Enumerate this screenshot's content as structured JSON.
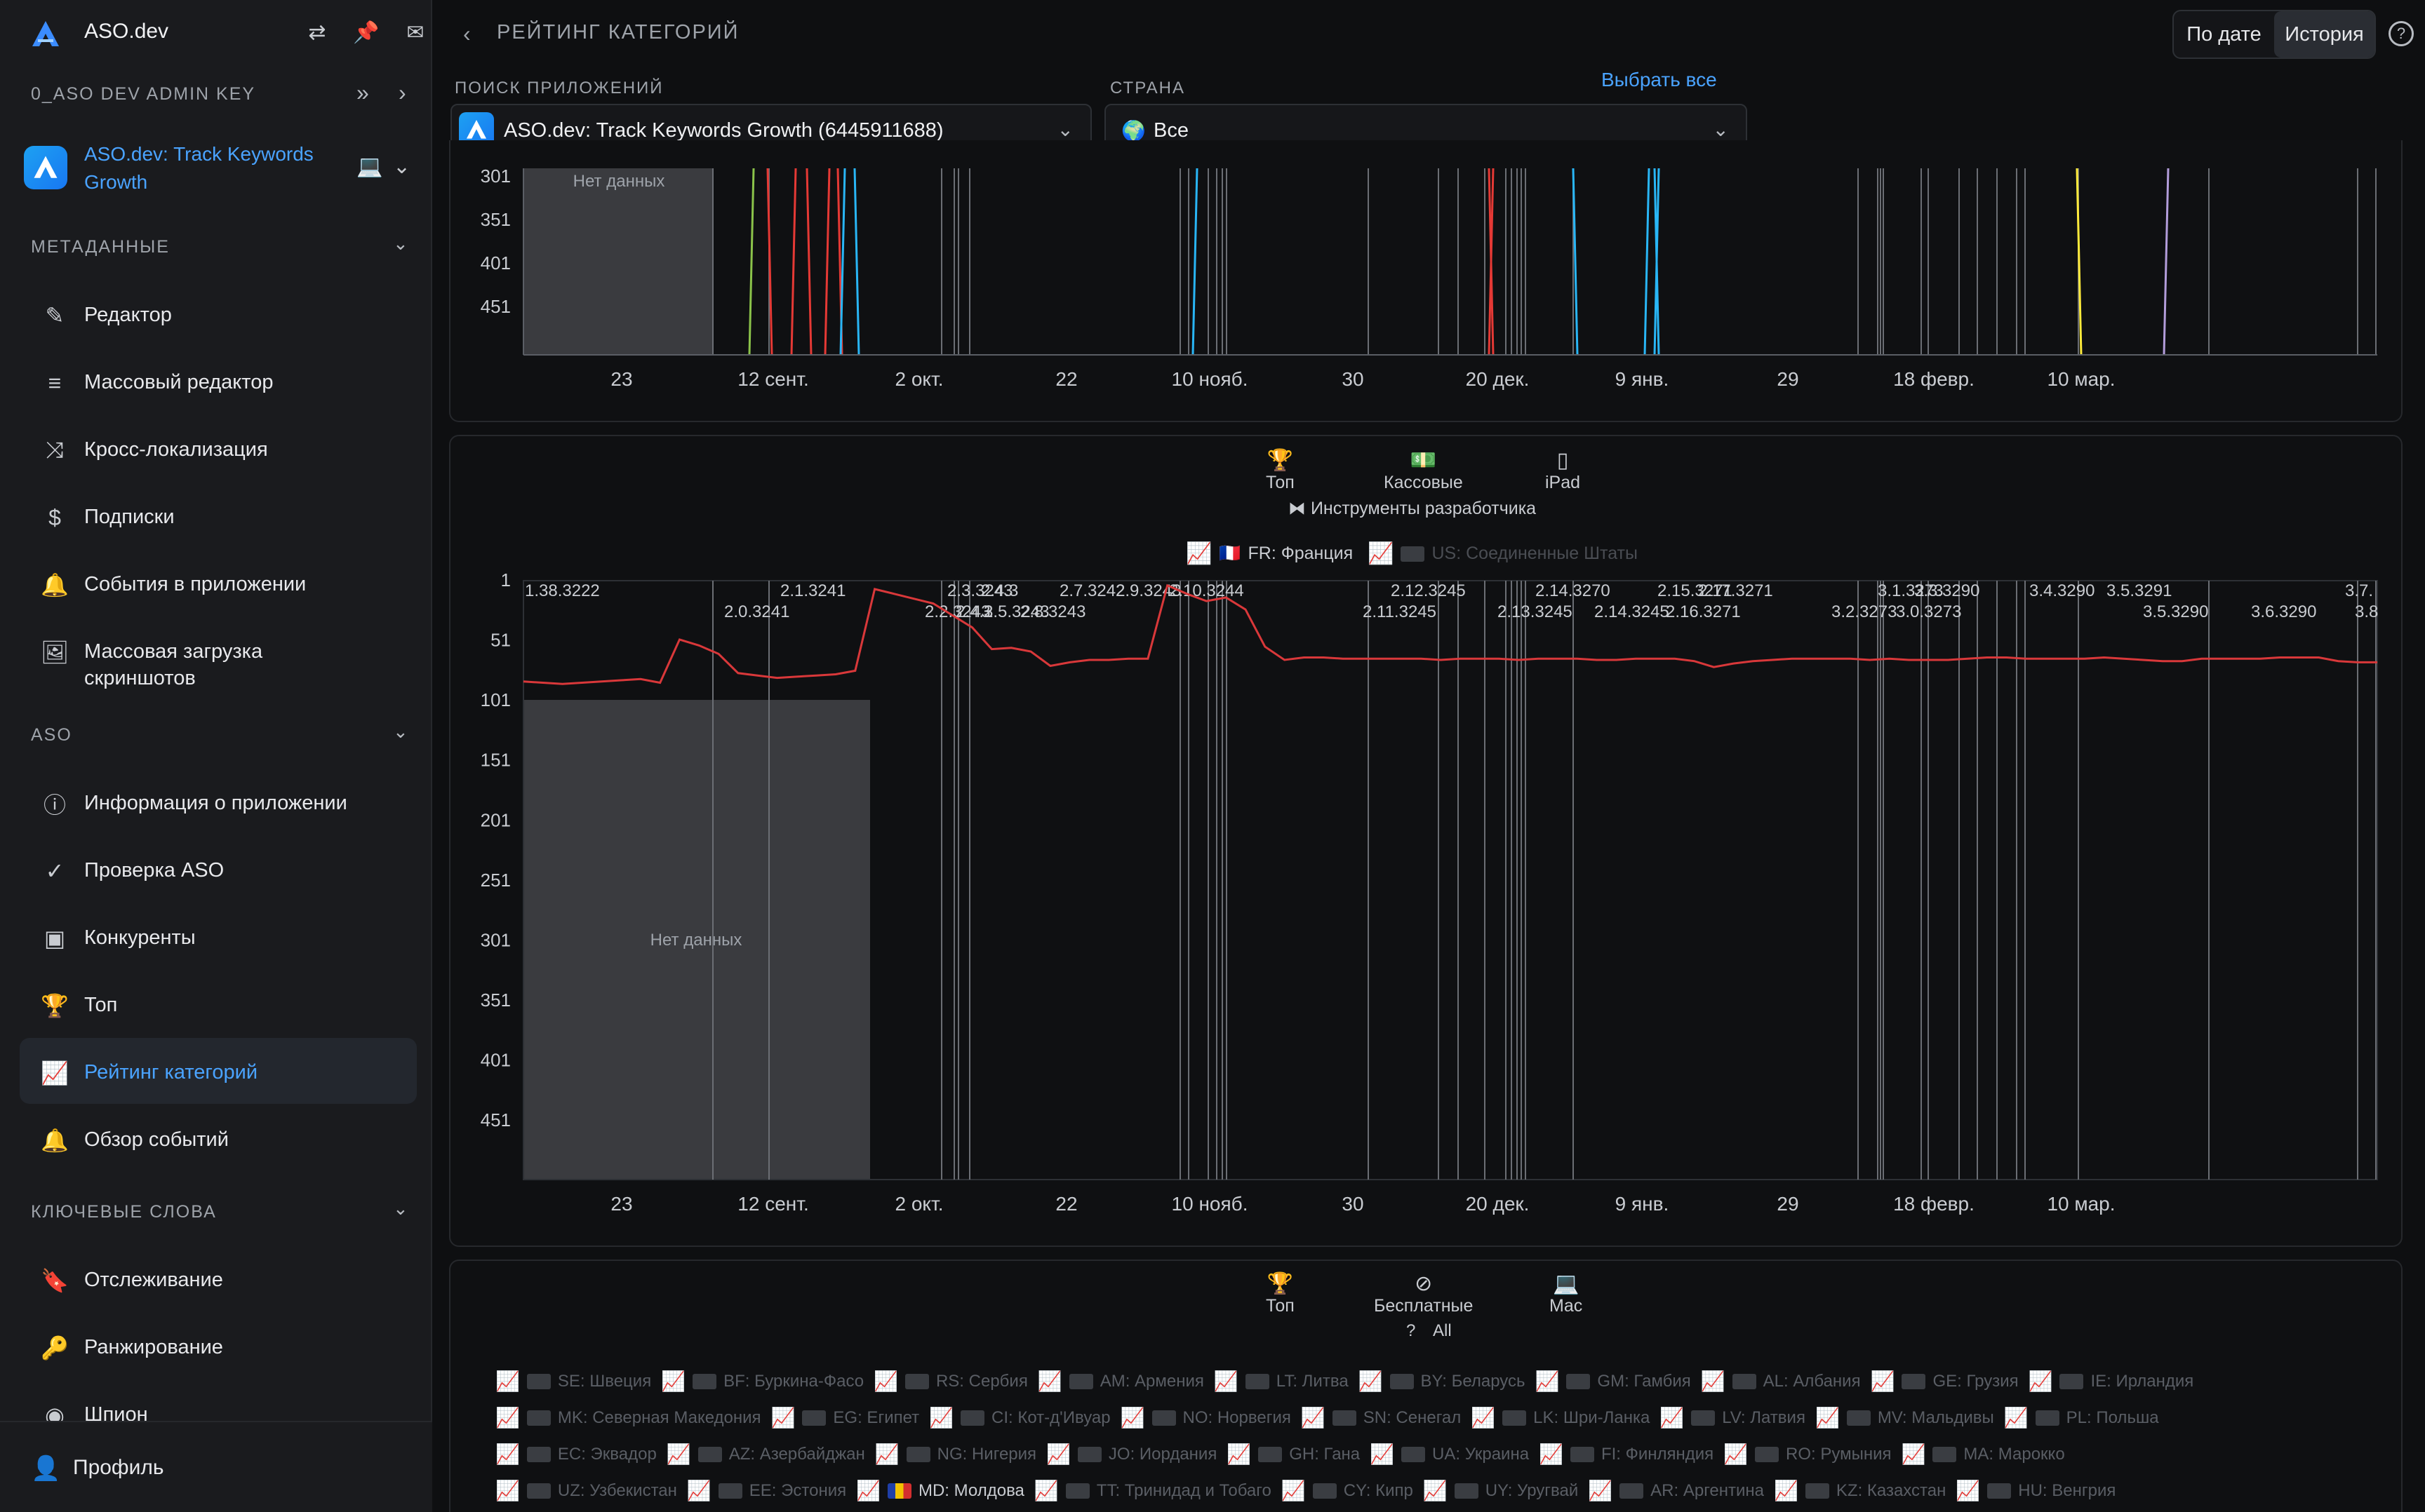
{
  "sidebar": {
    "app_name": "ASO.dev",
    "api_key": "0_ASO DEV ADMIN KEY",
    "current_app": "ASO.dev: Track Keywords Growth",
    "sections": {
      "metadata": "МЕТАДАННЫЕ",
      "aso": "ASO",
      "keywords": "КЛЮЧЕВЫЕ СЛОВА"
    },
    "items": [
      {
        "label": "Редактор",
        "icon": "pencil-icon"
      },
      {
        "label": "Массовый редактор",
        "icon": "bulk-edit-icon"
      },
      {
        "label": "Кросс-локализация",
        "icon": "shuffle-icon"
      },
      {
        "label": "Подписки",
        "icon": "subscription-icon"
      },
      {
        "label": "События в приложении",
        "icon": "bell-icon"
      },
      {
        "label": "Массовая загрузка скриншотов",
        "icon": "image-upload-icon"
      },
      {
        "label": "Информация о приложении",
        "icon": "info-icon"
      },
      {
        "label": "Проверка ASO",
        "icon": "check-circle-icon"
      },
      {
        "label": "Конкуренты",
        "icon": "competitors-icon"
      },
      {
        "label": "Топ",
        "icon": "trophy-icon"
      },
      {
        "label": "Рейтинг категорий",
        "icon": "chart-icon"
      },
      {
        "label": "Обзор событий",
        "icon": "bell-icon"
      },
      {
        "label": "Отслеживание",
        "icon": "bookmark-icon"
      },
      {
        "label": "Ранжирование",
        "icon": "key-icon"
      },
      {
        "label": "Шпион",
        "icon": "spy-icon"
      }
    ],
    "profile": "Профиль"
  },
  "header": {
    "title": "РЕЙТИНГ КАТЕГОРИЙ",
    "seg_date": "По дате",
    "seg_history": "История",
    "help": "?"
  },
  "filters": {
    "app_label": "ПОИСК ПРИЛОЖЕНИЙ",
    "app_value": "ASO.dev: Track Keywords Growth (6445911688)",
    "country_label": "СТРАНА",
    "country_value": "Все",
    "select_all": "Выбрать все"
  },
  "chart_top": {
    "no_data": "Нет данных",
    "y_ticks": [
      "301",
      "351",
      "401",
      "451"
    ],
    "x_ticks": [
      "23",
      "12 сент.",
      "2 окт.",
      "22",
      "10 нояб.",
      "30",
      "20 дек.",
      "9 янв.",
      "29",
      "18 февр.",
      "10 мар."
    ]
  },
  "chart_main": {
    "filters": [
      {
        "label": "Топ",
        "icon": "trophy-icon"
      },
      {
        "label": "Кассовые",
        "icon": "cash-icon"
      },
      {
        "label": "iPad",
        "icon": "tablet-icon"
      }
    ],
    "category": "Инструменты разработчика",
    "legend": [
      {
        "label": "FR: Франция",
        "active": true
      },
      {
        "label": "US: Соединенные Штаты",
        "active": false
      }
    ],
    "no_data": "Нет данных",
    "y_ticks": [
      "1",
      "51",
      "101",
      "151",
      "201",
      "251",
      "301",
      "351",
      "401",
      "451"
    ],
    "x_ticks": [
      "23",
      "12 сент.",
      "2 окт.",
      "22",
      "10 нояб.",
      "30",
      "20 дек.",
      "9 янв.",
      "29",
      "18 февр.",
      "10 мар."
    ],
    "version_labels_top": [
      "1.38.3222",
      "2.1.3241",
      "2.3.3243",
      "2.4.3",
      "2.7.3242",
      "2.9.3243",
      "2.10.3244",
      "2.12.3245",
      "2.14.3270",
      "2.15.3271",
      "2.17.3271",
      "3.1.3273",
      "3.3.3290",
      "3.4.3290",
      "3.5.3291",
      "3.7."
    ],
    "version_labels_bottom": [
      "2.0.3241",
      "2.2.3243",
      "2.4.3",
      "2.5.3243",
      "2.8.3243",
      "2.11.3245",
      "2.13.3245",
      "2.14.3245",
      "2.16.3271",
      "3.2.3273",
      "3.0.3273",
      "3.5.3290",
      "3.6.3290",
      "3.8"
    ]
  },
  "chart_data": {
    "type": "line",
    "series": [
      {
        "name": "FR: Франция",
        "color": "#d9383a"
      }
    ],
    "x_ticks": [
      "23",
      "12 сент.",
      "2 окт.",
      "22",
      "10 нояб.",
      "30",
      "20 дек.",
      "9 янв.",
      "29",
      "18 февр.",
      "10 мар."
    ],
    "y_ticks": [
      1,
      51,
      101,
      151,
      201,
      251,
      301,
      351,
      401,
      451
    ],
    "ylim": [
      1,
      500
    ],
    "y_inverted": true,
    "values": [
      85,
      86,
      87,
      86,
      85,
      84,
      83,
      86,
      50,
      55,
      62,
      78,
      80,
      82,
      81,
      80,
      79,
      76,
      8,
      12,
      16,
      20,
      30,
      40,
      58,
      57,
      60,
      72,
      69,
      67,
      67,
      66,
      66,
      5,
      12,
      18,
      15,
      25,
      56,
      67,
      65,
      65,
      66,
      66,
      66,
      66,
      66,
      67,
      66,
      66,
      66,
      67,
      66,
      66,
      66,
      67,
      67,
      66,
      66,
      66,
      68,
      73,
      70,
      68,
      67,
      66,
      66,
      66,
      66,
      67,
      66,
      67,
      67,
      67,
      66,
      65,
      65,
      66,
      66,
      66,
      66,
      65,
      66,
      67,
      68,
      68,
      66,
      66,
      66,
      66,
      65,
      65,
      65,
      68,
      69,
      69
    ]
  },
  "chart_bottom": {
    "filters": [
      {
        "label": "Топ",
        "icon": "trophy-icon"
      },
      {
        "label": "Бесплатные",
        "icon": "free-icon"
      },
      {
        "label": "Mac",
        "icon": "laptop-icon"
      }
    ],
    "category": "All",
    "legend_rows": [
      [
        "SE: Швеция",
        "BF: Буркина-Фасо",
        "RS: Сербия",
        "AM: Армения",
        "LT: Литва",
        "BY: Беларусь",
        "GM: Гамбия",
        "AL: Албания",
        "GE: Грузия",
        "IE: Ирландия"
      ],
      [
        "MK: Северная Македония",
        "EG: Египет",
        "CI: Кот-д'Ивуар",
        "NO: Норвегия",
        "SN: Сенегал",
        "LK: Шри-Ланка",
        "LV: Латвия",
        "MV: Мальдивы",
        "PL: Польша"
      ],
      [
        "EC: Эквадор",
        "AZ: Азербайджан",
        "NG: Нигерия",
        "JO: Иордания",
        "GH: Гана",
        "UA: Украина",
        "FI: Финляндия",
        "RO: Румыния",
        "MA: Марокко"
      ],
      [
        "UZ: Узбекистан",
        "EE: Эстония",
        "MD: Молдова",
        "TT: Тринидад и Тобаго",
        "CY: Кипр",
        "UY: Уругвай",
        "AR: Аргентина",
        "KZ: Казахстан",
        "HU: Венгрия"
      ]
    ],
    "active_item": "MD: Молдова"
  }
}
